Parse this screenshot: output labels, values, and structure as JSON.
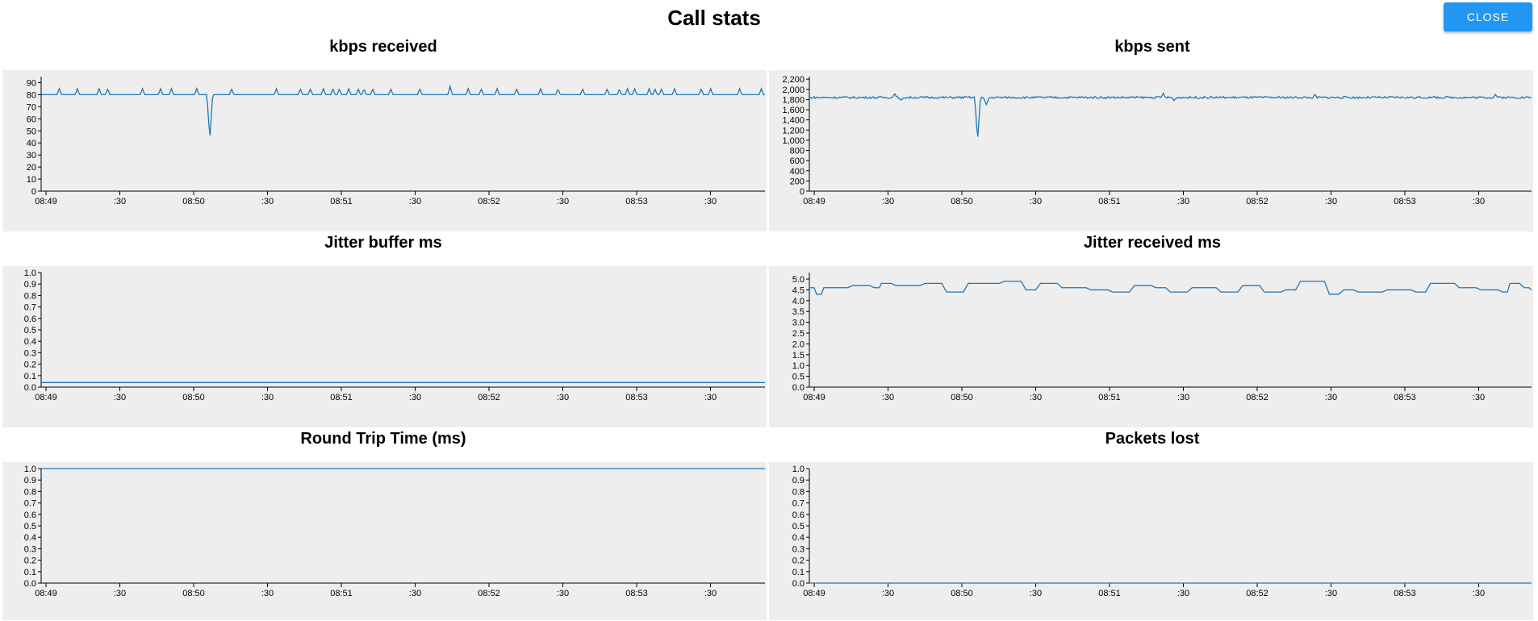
{
  "page": {
    "title": "Call stats"
  },
  "controls": {
    "close_label": "Close"
  },
  "colors": {
    "panel_bg": "#eeeeee",
    "line": "#1f77b4",
    "close_button": "#2196f3"
  },
  "chart_data": [
    {
      "type": "line",
      "title": "kbps received",
      "x_ticks": [
        "08:49",
        ":30",
        "08:50",
        ":30",
        "08:51",
        ":30",
        "08:52",
        ":30",
        "08:53",
        ":30"
      ],
      "y_ticks": [
        "0",
        "10",
        "20",
        "30",
        "40",
        "50",
        "60",
        "70",
        "80",
        "90"
      ],
      "ylim": [
        0,
        95
      ],
      "baseline": 80,
      "spikes": [
        [
          0.025,
          85
        ],
        [
          0.05,
          85
        ],
        [
          0.08,
          85
        ],
        [
          0.092,
          85
        ],
        [
          0.14,
          85
        ],
        [
          0.165,
          85
        ],
        [
          0.18,
          85
        ],
        [
          0.215,
          85
        ],
        [
          0.233,
          43
        ],
        [
          0.263,
          85
        ],
        [
          0.325,
          85
        ],
        [
          0.358,
          85
        ],
        [
          0.372,
          85
        ],
        [
          0.39,
          85
        ],
        [
          0.403,
          85
        ],
        [
          0.412,
          85
        ],
        [
          0.425,
          85
        ],
        [
          0.438,
          85
        ],
        [
          0.446,
          85
        ],
        [
          0.458,
          85
        ],
        [
          0.483,
          85
        ],
        [
          0.523,
          85
        ],
        [
          0.565,
          87
        ],
        [
          0.59,
          85
        ],
        [
          0.608,
          85
        ],
        [
          0.63,
          85
        ],
        [
          0.657,
          85
        ],
        [
          0.69,
          85
        ],
        [
          0.714,
          85
        ],
        [
          0.748,
          85
        ],
        [
          0.782,
          85
        ],
        [
          0.799,
          85
        ],
        [
          0.81,
          85
        ],
        [
          0.82,
          85
        ],
        [
          0.84,
          85
        ],
        [
          0.848,
          85
        ],
        [
          0.857,
          85
        ],
        [
          0.875,
          85
        ],
        [
          0.912,
          85
        ],
        [
          0.925,
          85
        ],
        [
          0.965,
          85
        ],
        [
          0.995,
          85
        ]
      ],
      "grid": false
    },
    {
      "type": "line",
      "title": "kbps sent",
      "x_ticks": [
        "08:49",
        ":30",
        "08:50",
        ":30",
        "08:51",
        ":30",
        "08:52",
        ":30",
        "08:53",
        ":30"
      ],
      "y_ticks": [
        "0",
        "200",
        "400",
        "600",
        "800",
        "1,000",
        "1,200",
        "1,400",
        "1,600",
        "1,800",
        "2,000",
        "2,200"
      ],
      "ylim": [
        0,
        2250
      ],
      "baseline": 1840,
      "noise": 40,
      "spikes": [
        [
          0.118,
          1920
        ],
        [
          0.127,
          1780
        ],
        [
          0.233,
          1000
        ],
        [
          0.245,
          1700
        ],
        [
          0.49,
          1920
        ],
        [
          0.505,
          1780
        ],
        [
          0.7,
          1900
        ],
        [
          0.95,
          1900
        ]
      ],
      "grid": false
    },
    {
      "type": "line",
      "title": "Jitter buffer ms",
      "x_ticks": [
        "08:49",
        ":30",
        "08:50",
        ":30",
        "08:51",
        ":30",
        "08:52",
        ":30",
        "08:53",
        ":30"
      ],
      "y_ticks": [
        "0.0",
        "0.1",
        "0.2",
        "0.3",
        "0.4",
        "0.5",
        "0.6",
        "0.7",
        "0.8",
        "0.9",
        "1.0"
      ],
      "ylim": [
        0,
        1
      ],
      "baseline": 0.04,
      "grid": false
    },
    {
      "type": "line",
      "title": "Jitter received ms",
      "x_ticks": [
        "08:49",
        ":30",
        "08:50",
        ":30",
        "08:51",
        ":30",
        "08:52",
        ":30",
        "08:53",
        ":30"
      ],
      "y_ticks": [
        "0.0",
        "0.5",
        "1.0",
        "1.5",
        "2.0",
        "2.5",
        "3.0",
        "3.5",
        "4.0",
        "4.5",
        "5.0"
      ],
      "ylim": [
        0,
        5.3
      ],
      "steps": [
        [
          0.0,
          4.6
        ],
        [
          0.01,
          4.3
        ],
        [
          0.02,
          4.6
        ],
        [
          0.06,
          4.7
        ],
        [
          0.09,
          4.6
        ],
        [
          0.1,
          4.8
        ],
        [
          0.12,
          4.7
        ],
        [
          0.16,
          4.8
        ],
        [
          0.19,
          4.4
        ],
        [
          0.22,
          4.8
        ],
        [
          0.27,
          4.9
        ],
        [
          0.3,
          4.5
        ],
        [
          0.32,
          4.8
        ],
        [
          0.35,
          4.6
        ],
        [
          0.39,
          4.5
        ],
        [
          0.42,
          4.4
        ],
        [
          0.45,
          4.7
        ],
        [
          0.48,
          4.6
        ],
        [
          0.5,
          4.4
        ],
        [
          0.53,
          4.6
        ],
        [
          0.57,
          4.4
        ],
        [
          0.6,
          4.7
        ],
        [
          0.63,
          4.4
        ],
        [
          0.66,
          4.5
        ],
        [
          0.68,
          4.9
        ],
        [
          0.72,
          4.3
        ],
        [
          0.74,
          4.5
        ],
        [
          0.76,
          4.4
        ],
        [
          0.8,
          4.5
        ],
        [
          0.84,
          4.4
        ],
        [
          0.86,
          4.8
        ],
        [
          0.9,
          4.6
        ],
        [
          0.93,
          4.5
        ],
        [
          0.96,
          4.4
        ],
        [
          0.97,
          4.8
        ],
        [
          0.99,
          4.6
        ],
        [
          1.0,
          4.5
        ]
      ],
      "grid": false
    },
    {
      "type": "line",
      "title": "Round Trip Time (ms)",
      "x_ticks": [
        "08:49",
        ":30",
        "08:50",
        ":30",
        "08:51",
        ":30",
        "08:52",
        ":30",
        "08:53",
        ":30"
      ],
      "y_ticks": [
        "0.0",
        "0.1",
        "0.2",
        "0.3",
        "0.4",
        "0.5",
        "0.6",
        "0.7",
        "0.8",
        "0.9",
        "1.0"
      ],
      "ylim": [
        0,
        1
      ],
      "baseline": 1.0,
      "grid": false
    },
    {
      "type": "line",
      "title": "Packets lost",
      "x_ticks": [
        "08:49",
        ":30",
        "08:50",
        ":30",
        "08:51",
        ":30",
        "08:52",
        ":30",
        "08:53",
        ":30"
      ],
      "y_ticks": [
        "0.0",
        "0.1",
        "0.2",
        "0.3",
        "0.4",
        "0.5",
        "0.6",
        "0.7",
        "0.8",
        "0.9",
        "1.0"
      ],
      "ylim": [
        0,
        1
      ],
      "baseline": 0.0,
      "grid": false
    }
  ]
}
